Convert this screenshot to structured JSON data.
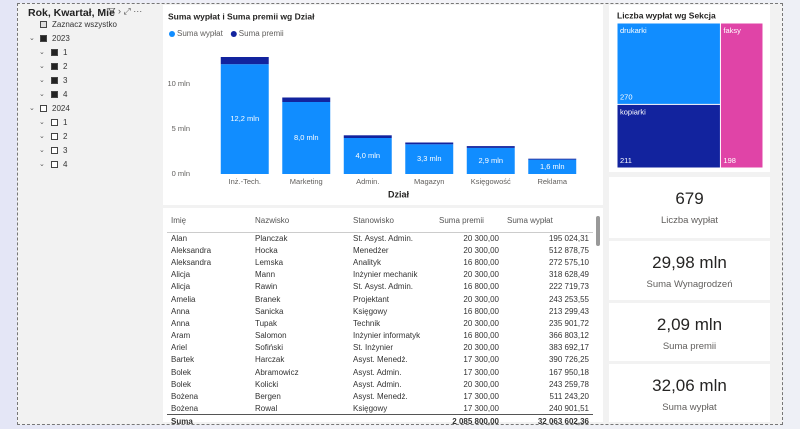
{
  "slicer": {
    "title": "Rok, Kwartał, Mie",
    "select_all": "Zaznacz wszystko",
    "years": [
      {
        "label": "2023",
        "checked": true,
        "quarters": [
          "1",
          "2",
          "3",
          "4"
        ]
      },
      {
        "label": "2024",
        "checked": false,
        "quarters": [
          "1",
          "2",
          "3",
          "4"
        ]
      }
    ]
  },
  "chart_data": [
    {
      "type": "stacked-bar",
      "title": "Suma wypłat i Suma premii wg Dział",
      "x_label": "Dział",
      "categories": [
        "Inż.-Tech.",
        "Marketing",
        "Admin.",
        "Magazyn",
        "Księgowość",
        "Reklama"
      ],
      "series": [
        {
          "name": "Suma wypłat",
          "color": "#118dff",
          "values": [
            12.2,
            8.0,
            4.0,
            3.3,
            2.9,
            1.6
          ],
          "value_labels": [
            "12,2 mln",
            "8,0 mln",
            "4,0 mln",
            "3,3 mln",
            "2,9 mln",
            "1,6 mln"
          ]
        },
        {
          "name": "Suma premii",
          "color": "#12239e",
          "values": [
            0.8,
            0.5,
            0.3,
            0.2,
            0.2,
            0.1
          ]
        }
      ],
      "ylim": [
        0,
        14
      ],
      "yticks": [
        {
          "value": 0,
          "label": "0 mln"
        },
        {
          "value": 5,
          "label": "5 mln"
        },
        {
          "value": 10,
          "label": "10 mln"
        }
      ]
    },
    {
      "type": "treemap",
      "title": "Liczba wypłat wg Sekcja",
      "categories": [
        "drukarki",
        "kopiarki",
        "faksy"
      ],
      "values": [
        270,
        211,
        198
      ],
      "colors": [
        "#118dff",
        "#12239e",
        "#e044a7"
      ]
    }
  ],
  "cards": [
    {
      "value": "679",
      "label": "Liczba wypłat"
    },
    {
      "value": "29,98 mln",
      "label": "Suma Wynagrodzeń"
    },
    {
      "value": "2,09 mln",
      "label": "Suma premii"
    },
    {
      "value": "32,06 mln",
      "label": "Suma wypłat"
    }
  ],
  "table": {
    "columns": [
      "Imię",
      "Nazwisko",
      "Stanowisko",
      "Suma premii",
      "Suma wypłat"
    ],
    "rows": [
      [
        "Alan",
        "Planczak",
        "St. Asyst. Admin.",
        "20 300,00",
        "195 024,31"
      ],
      [
        "Aleksandra",
        "Hocka",
        "Menedżer",
        "20 300,00",
        "512 878,75"
      ],
      [
        "Aleksandra",
        "Lemska",
        "Analityk",
        "16 800,00",
        "272 575,10"
      ],
      [
        "Alicja",
        "Mann",
        "Inżynier mechanik",
        "20 300,00",
        "318 628,49"
      ],
      [
        "Alicja",
        "Rawin",
        "St. Asyst. Admin.",
        "16 800,00",
        "222 719,73"
      ],
      [
        "Amelia",
        "Branek",
        "Projektant",
        "20 300,00",
        "243 253,55"
      ],
      [
        "Anna",
        "Sanicka",
        "Księgowy",
        "16 800,00",
        "213 299,43"
      ],
      [
        "Anna",
        "Tupak",
        "Technik",
        "20 300,00",
        "235 901,72"
      ],
      [
        "Aram",
        "Salomon",
        "Inżynier informatyk",
        "16 800,00",
        "366 803,12"
      ],
      [
        "Ariel",
        "Sofiński",
        "St. Inżynier",
        "20 300,00",
        "383 692,17"
      ],
      [
        "Bartek",
        "Harczak",
        "Asyst. Menedż.",
        "17 300,00",
        "390 726,25"
      ],
      [
        "Bolek",
        "Abramowicz",
        "Asyst. Admin.",
        "17 300,00",
        "167 950,18"
      ],
      [
        "Bolek",
        "Kolicki",
        "Asyst. Admin.",
        "20 300,00",
        "243 259,78"
      ],
      [
        "Bożena",
        "Bergen",
        "Asyst. Menedż.",
        "17 300,00",
        "511 243,20"
      ],
      [
        "Bożena",
        "Rowal",
        "Księgowy",
        "17 300,00",
        "240 901,51"
      ]
    ],
    "total": {
      "label": "Suma",
      "premii": "2 085 800,00",
      "wyplat": "32 063 602,36"
    }
  }
}
